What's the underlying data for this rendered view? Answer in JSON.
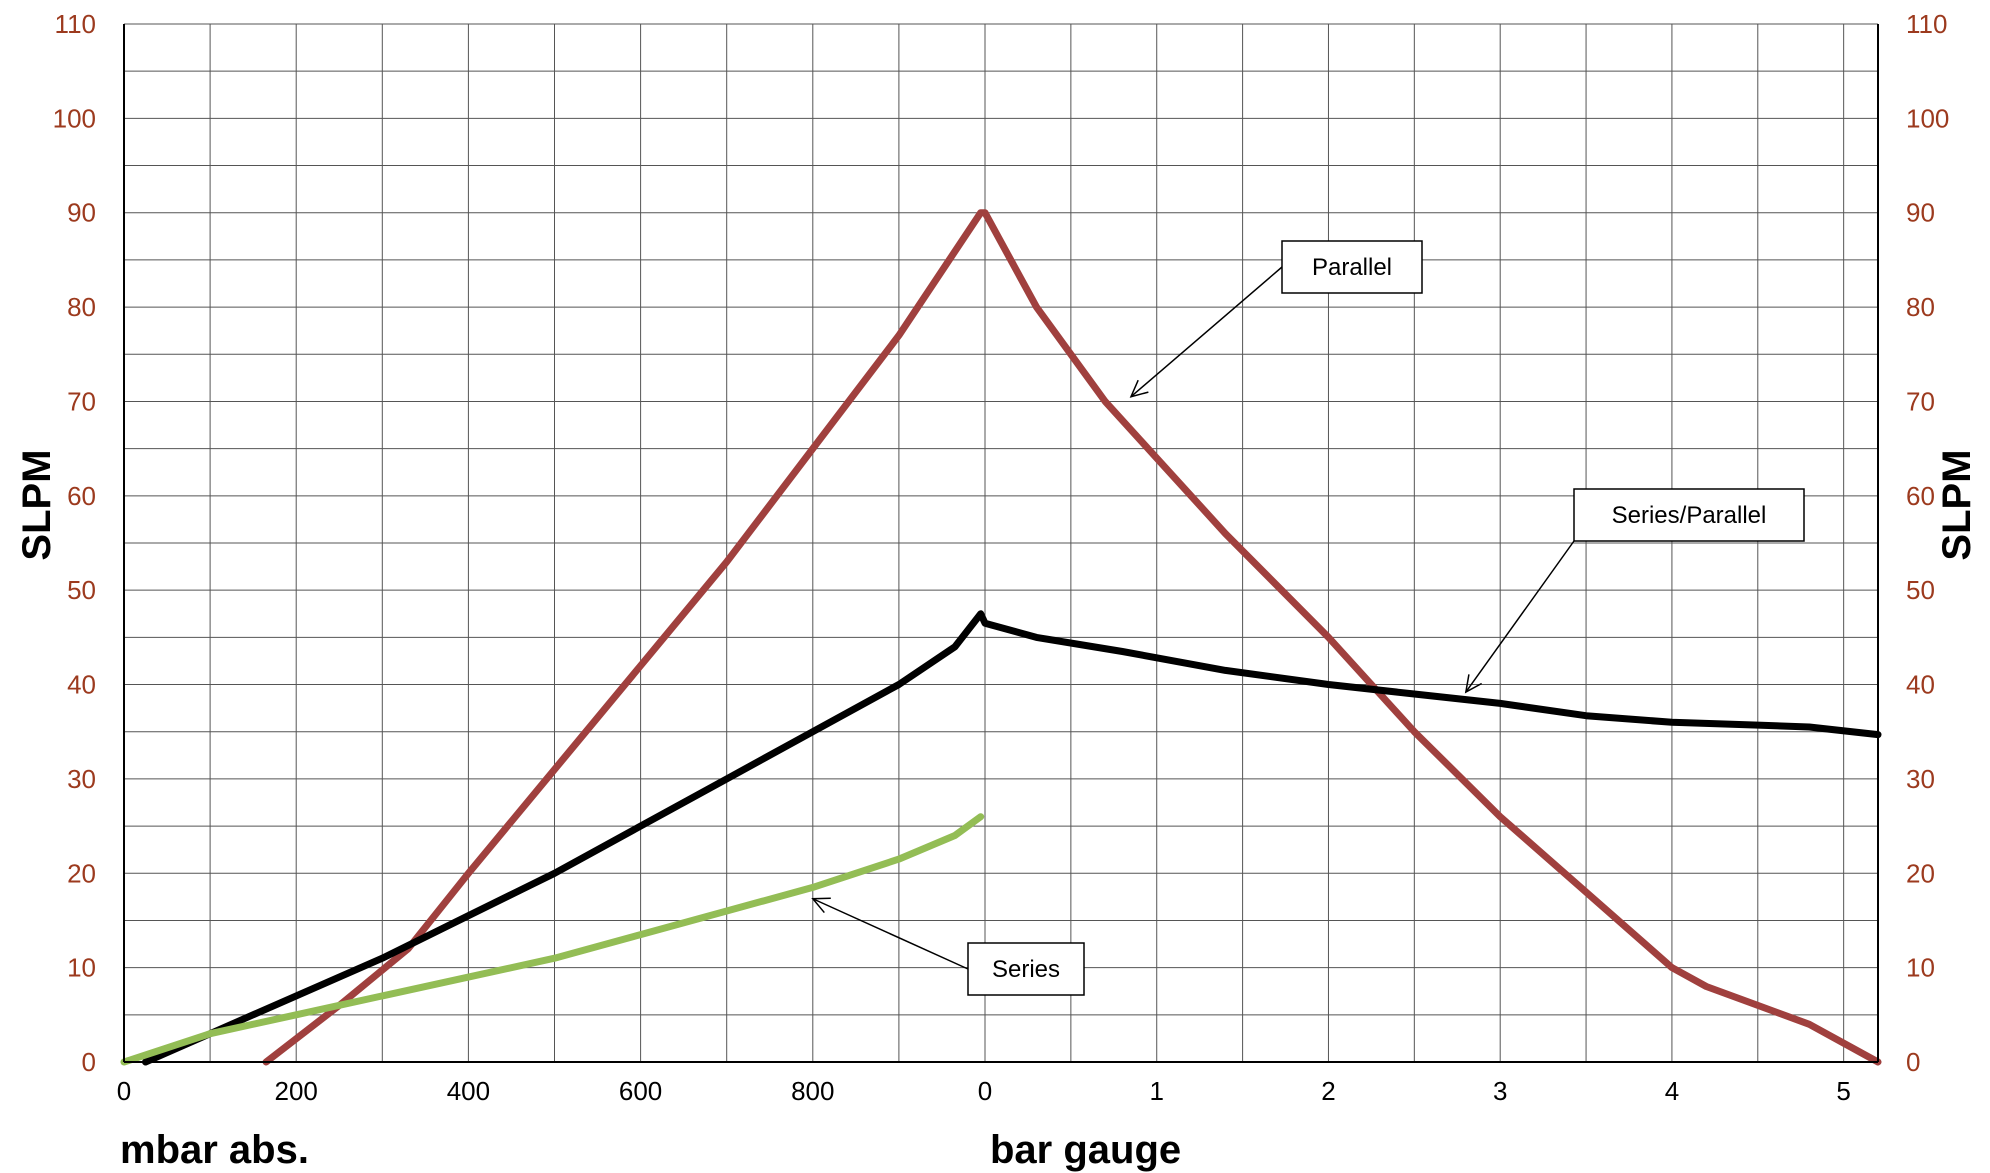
{
  "chart_data": {
    "type": "line",
    "ylabel_left": "SLPM",
    "ylabel_right": "SLPM",
    "xlabel_left": "mbar abs.",
    "xlabel_right": "bar gauge",
    "ylim": [
      0,
      110
    ],
    "yticks": [
      0,
      10,
      20,
      30,
      40,
      50,
      60,
      70,
      80,
      90,
      100,
      110
    ],
    "xticks_vacuum": [
      "0",
      "200",
      "400",
      "600",
      "800"
    ],
    "xticks_pressure": [
      "0",
      "1",
      "2",
      "3",
      "4",
      "5"
    ],
    "x_vacuum_range": [
      0,
      1000
    ],
    "x_pressure_range": [
      0,
      5.2
    ],
    "grid": true,
    "colors": {
      "parallel": "#a0403e",
      "series_parallel": "#000000",
      "series": "#93bd55",
      "tick_text": "#9c3a1e"
    },
    "series": [
      {
        "name": "Parallel",
        "vacuum": {
          "x": [
            165,
            250,
            330,
            400,
            500,
            600,
            700,
            800,
            900,
            995
          ],
          "y": [
            0,
            6,
            12,
            20,
            31,
            42,
            53,
            65,
            77,
            90
          ]
        },
        "pressure": {
          "x": [
            0,
            0.3,
            0.7,
            1.0,
            1.4,
            2.0,
            2.5,
            3.0,
            3.5,
            4.0,
            4.2,
            4.5,
            4.8,
            5.2
          ],
          "y": [
            90,
            80,
            70,
            64,
            56,
            45,
            35,
            26,
            18,
            10,
            8,
            6,
            4,
            0
          ]
        }
      },
      {
        "name": "Series/Parallel",
        "vacuum": {
          "x": [
            25,
            100,
            200,
            300,
            400,
            500,
            600,
            700,
            800,
            900,
            965,
            995
          ],
          "y": [
            0,
            3,
            7,
            11,
            15.5,
            20,
            25,
            30,
            35,
            40,
            44,
            47.5
          ]
        },
        "pressure": {
          "x": [
            0,
            0.3,
            0.8,
            1.4,
            2.0,
            2.5,
            3.0,
            3.5,
            4.0,
            4.5,
            4.8,
            5.2
          ],
          "y": [
            46.5,
            45,
            43.5,
            41.5,
            40,
            39,
            38,
            36.7,
            36,
            35.7,
            35.5,
            34.7
          ]
        }
      },
      {
        "name": "Series",
        "vacuum": {
          "x": [
            0,
            100,
            200,
            300,
            400,
            500,
            600,
            700,
            800,
            900,
            965,
            995
          ],
          "y": [
            0,
            3,
            5,
            7,
            9,
            11,
            13.5,
            16,
            18.5,
            21.5,
            24,
            26
          ]
        },
        "pressure": null
      }
    ],
    "annotations": [
      {
        "text": "Parallel",
        "series": "Parallel"
      },
      {
        "text": "Series/Parallel",
        "series": "Series/Parallel"
      },
      {
        "text": "Series",
        "series": "Series"
      }
    ]
  }
}
